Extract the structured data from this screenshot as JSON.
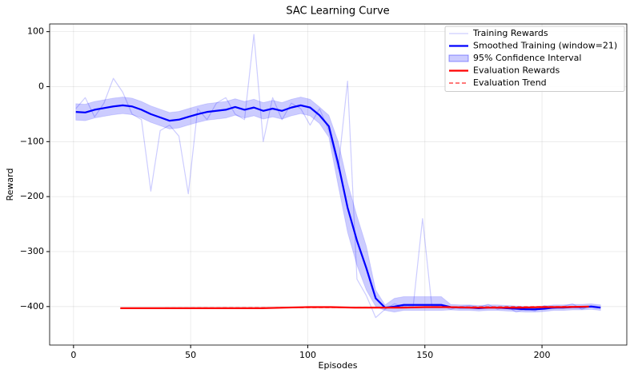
{
  "chart_data": {
    "type": "line",
    "title": "SAC Learning Curve",
    "x_label": "Episodes",
    "y_label": "Reward",
    "xlim": [
      -10.2,
      236.2
    ],
    "ylim": [
      -470,
      114
    ],
    "xticks": [
      0,
      50,
      100,
      150,
      200
    ],
    "yticks": [
      {
        "value": -400,
        "label": "−400"
      },
      {
        "value": -300,
        "label": "−300"
      },
      {
        "value": -200,
        "label": "−200"
      },
      {
        "value": -100,
        "label": "−100"
      },
      0,
      100
    ],
    "grid": true,
    "legend": "upper right",
    "series": [
      {
        "name": "Training Rewards",
        "kind": "line",
        "color": "#0000ff",
        "alpha": 0.2,
        "width": 1.2,
        "x": [
          1,
          5,
          9,
          13,
          17,
          21,
          25,
          29,
          33,
          37,
          41,
          45,
          49,
          53,
          57,
          61,
          65,
          69,
          73,
          77,
          81,
          85,
          89,
          93,
          97,
          101,
          105,
          109,
          113,
          117,
          121,
          125,
          129,
          133,
          137,
          141,
          145,
          149,
          153,
          157,
          161,
          165,
          169,
          173,
          177,
          181,
          185,
          189,
          193,
          197,
          201,
          205,
          209,
          213,
          217,
          221,
          225
        ],
        "values": [
          -40,
          -20,
          -55,
          -30,
          15,
          -10,
          -50,
          -60,
          -190,
          -80,
          -70,
          -90,
          -195,
          -40,
          -60,
          -30,
          -20,
          -50,
          -60,
          95,
          -100,
          -20,
          -60,
          -30,
          -40,
          -70,
          -40,
          -80,
          -150,
          10,
          -350,
          -380,
          -420,
          -405,
          -395,
          -400,
          -400,
          -240,
          -400,
          -398,
          -405,
          -400,
          -398,
          -402,
          -396,
          -405,
          -400,
          -410,
          -404,
          -408,
          -398,
          -404,
          -400,
          -395,
          -405,
          -398,
          -401
        ]
      },
      {
        "name": "Smoothed Training (window=21)",
        "kind": "line",
        "color": "#0000ff",
        "alpha": 1,
        "width": 2.2,
        "x": [
          1,
          5,
          9,
          13,
          17,
          21,
          25,
          29,
          33,
          37,
          41,
          45,
          49,
          53,
          57,
          61,
          65,
          69,
          73,
          77,
          81,
          85,
          89,
          93,
          97,
          101,
          105,
          109,
          113,
          117,
          121,
          125,
          129,
          133,
          137,
          141,
          145,
          149,
          153,
          157,
          161,
          165,
          169,
          173,
          177,
          181,
          185,
          189,
          193,
          197,
          201,
          205,
          209,
          213,
          217,
          221,
          225
        ],
        "values": [
          -46,
          -47,
          -42,
          -39,
          -36,
          -34,
          -36,
          -42,
          -50,
          -56,
          -62,
          -60,
          -55,
          -50,
          -46,
          -44,
          -42,
          -37,
          -42,
          -38,
          -44,
          -40,
          -44,
          -38,
          -34,
          -38,
          -52,
          -72,
          -140,
          -220,
          -280,
          -330,
          -385,
          -402,
          -400,
          -397,
          -397,
          -397,
          -397,
          -397,
          -401,
          -402,
          -402,
          -403,
          -402,
          -402,
          -403,
          -404,
          -405,
          -405,
          -404,
          -402,
          -402,
          -401,
          -401,
          -400,
          -402
        ]
      },
      {
        "name": "95% Confidence Interval",
        "kind": "band",
        "color": "#0000ff",
        "alpha": 0.2,
        "x": [
          1,
          5,
          9,
          13,
          17,
          21,
          25,
          29,
          33,
          37,
          41,
          45,
          49,
          53,
          57,
          61,
          65,
          69,
          73,
          77,
          81,
          85,
          89,
          93,
          97,
          101,
          105,
          109,
          113,
          117,
          121,
          125,
          129,
          133,
          137,
          141,
          145,
          149,
          153,
          157,
          161,
          165,
          169,
          173,
          177,
          181,
          185,
          189,
          193,
          197,
          201,
          205,
          209,
          213,
          217,
          221,
          225
        ],
        "lower": [
          -61,
          -62,
          -57,
          -54,
          -51,
          -49,
          -51,
          -57,
          -65,
          -71,
          -77,
          -75,
          -70,
          -65,
          -61,
          -59,
          -57,
          -52,
          -57,
          -53,
          -59,
          -55,
          -59,
          -53,
          -49,
          -53,
          -67,
          -92,
          -180,
          -265,
          -325,
          -370,
          -400,
          -407,
          -410,
          -407,
          -407,
          -407,
          -407,
          -407,
          -406,
          -407,
          -407,
          -408,
          -407,
          -407,
          -408,
          -409,
          -410,
          -410,
          -409,
          -407,
          -407,
          -406,
          -406,
          -405,
          -407
        ],
        "upper": [
          -31,
          -32,
          -27,
          -24,
          -21,
          -19,
          -21,
          -27,
          -35,
          -41,
          -47,
          -45,
          -40,
          -35,
          -31,
          -29,
          -27,
          -22,
          -27,
          -23,
          -29,
          -25,
          -29,
          -23,
          -19,
          -23,
          -37,
          -52,
          -100,
          -175,
          -235,
          -290,
          -370,
          -397,
          -385,
          -382,
          -382,
          -382,
          -382,
          -382,
          -396,
          -397,
          -397,
          -398,
          -397,
          -397,
          -398,
          -399,
          -400,
          -400,
          -399,
          -397,
          -397,
          -396,
          -396,
          -395,
          -397
        ]
      },
      {
        "name": "Evaluation Rewards",
        "kind": "line",
        "color": "#ff0000",
        "alpha": 1,
        "width": 2.2,
        "x": [
          20,
          30,
          40,
          50,
          60,
          70,
          80,
          90,
          100,
          110,
          120,
          130,
          140,
          150,
          160,
          170,
          180,
          190,
          200,
          210,
          220
        ],
        "values": [
          -403,
          -403,
          -403,
          -403,
          -403,
          -403,
          -403,
          -402,
          -401,
          -401,
          -402,
          -402,
          -402,
          -401,
          -401,
          -402,
          -402,
          -402,
          -401,
          -401,
          -400
        ]
      },
      {
        "name": "Evaluation Trend",
        "kind": "line",
        "color": "#ff0000",
        "alpha": 0.7,
        "width": 1.5,
        "linestyle": "dashed",
        "x": [
          20,
          220
        ],
        "values": [
          -403,
          -400
        ]
      }
    ]
  }
}
